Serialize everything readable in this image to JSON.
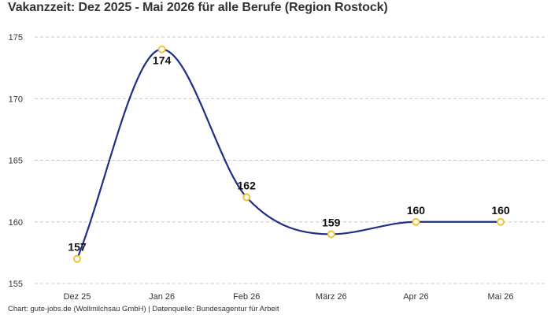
{
  "title": "Vakanzzeit: Dez 2025 - Mai 2026 für alle Berufe (Region Rostock)",
  "footer": "Chart: gute-jobs.de (Wollmilchsau GmbH) | Datenquelle: Bundesagentur für Arbeit",
  "colors": {
    "line": "#1f2f86",
    "marker": "#f2c230",
    "grid": "#c8c8c8"
  },
  "chart_data": {
    "type": "line",
    "title": "Vakanzzeit: Dez 2025 - Mai 2026 für alle Berufe (Region Rostock)",
    "categories": [
      "Dez 25",
      "Jan 26",
      "Feb 26",
      "März 26",
      "Apr 26",
      "Mai 26"
    ],
    "series": [
      {
        "values": [
          157,
          174,
          162,
          159,
          160,
          160
        ]
      }
    ],
    "ylim": [
      155,
      175
    ],
    "yticks": [
      155,
      160,
      165,
      170,
      175
    ],
    "grid": true,
    "data_labels": true,
    "smooth": true
  }
}
